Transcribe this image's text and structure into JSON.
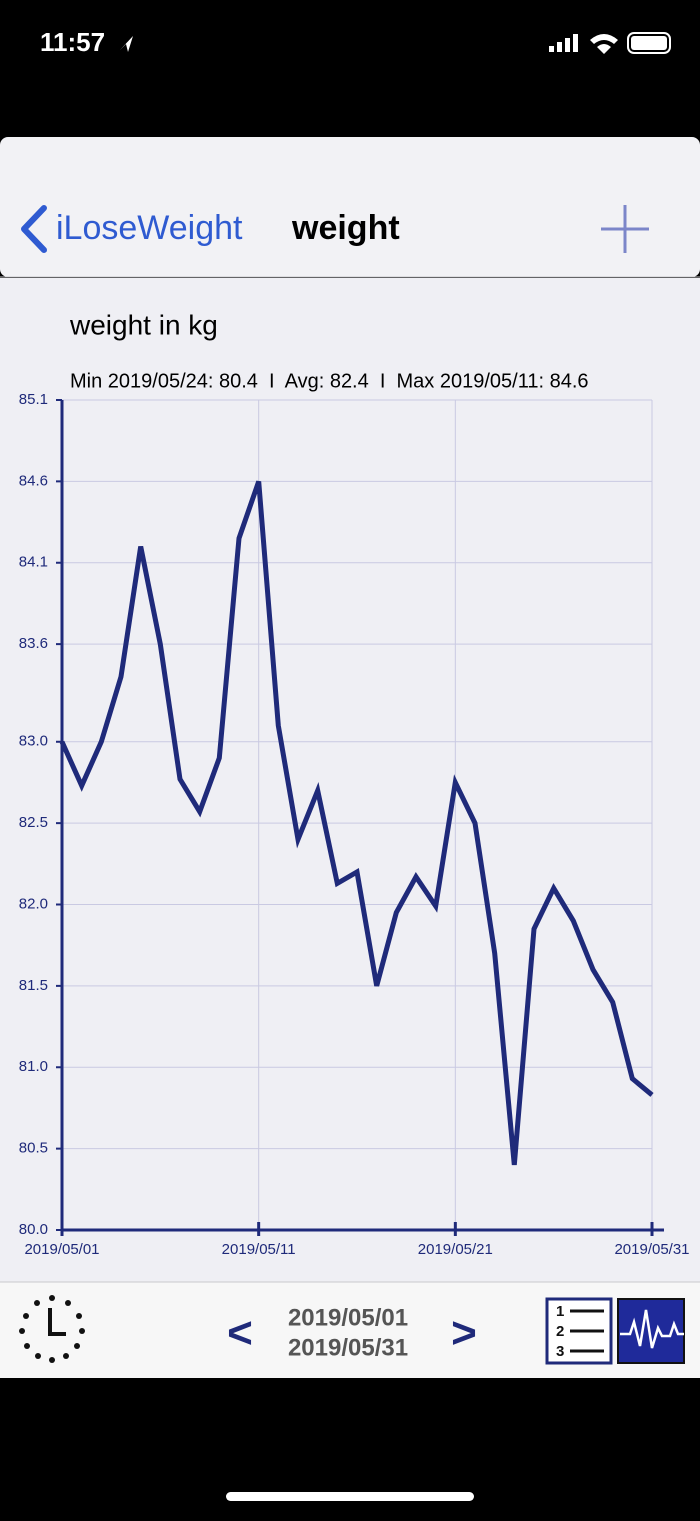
{
  "status_bar": {
    "time": "11:57"
  },
  "nav_bar": {
    "back": "iLoseWeight",
    "title": "weight"
  },
  "chart_data": {
    "type": "line",
    "title": "weight in kg",
    "subtitle": "Min 2019/05/24: 80.4  I  Avg: 82.4  I  Max 2019/05/11: 84.6",
    "x": [
      "2019/05/01",
      "2019/05/02",
      "2019/05/03",
      "2019/05/04",
      "2019/05/05",
      "2019/05/06",
      "2019/05/07",
      "2019/05/08",
      "2019/05/09",
      "2019/05/10",
      "2019/05/11",
      "2019/05/12",
      "2019/05/13",
      "2019/05/14",
      "2019/05/15",
      "2019/05/16",
      "2019/05/17",
      "2019/05/18",
      "2019/05/19",
      "2019/05/20",
      "2019/05/21",
      "2019/05/22",
      "2019/05/23",
      "2019/05/24",
      "2019/05/25",
      "2019/05/26",
      "2019/05/27",
      "2019/05/28",
      "2019/05/29",
      "2019/05/30",
      "2019/05/31"
    ],
    "values": [
      83.0,
      82.73,
      83.0,
      83.4,
      84.2,
      83.6,
      82.77,
      82.57,
      82.9,
      84.25,
      84.6,
      83.1,
      82.4,
      82.7,
      82.13,
      82.2,
      81.5,
      81.95,
      82.17,
      81.99,
      82.75,
      82.5,
      81.7,
      80.4,
      81.85,
      82.1,
      81.9,
      81.6,
      81.4,
      80.93,
      80.83
    ],
    "color": "#1f2a7a",
    "xlim": [
      "2019/05/01",
      "2019/05/31"
    ],
    "xticks": [
      "2019/05/01",
      "2019/05/11",
      "2019/05/21",
      "2019/05/31"
    ],
    "ylim": [
      80,
      85.1
    ],
    "yticks": [
      {
        "value": 80,
        "label": "80.0"
      },
      80.5,
      {
        "value": 81,
        "label": "81.0"
      },
      81.5,
      {
        "value": 82,
        "label": "82.0"
      },
      82.5,
      {
        "value": 83,
        "label": "83.0"
      },
      83.6,
      84.1,
      84.6,
      85.1
    ],
    "grid": true
  },
  "toolbar": {
    "prev": "<",
    "from": "2019/05/01",
    "to": "2019/05/31",
    "next": ">"
  }
}
